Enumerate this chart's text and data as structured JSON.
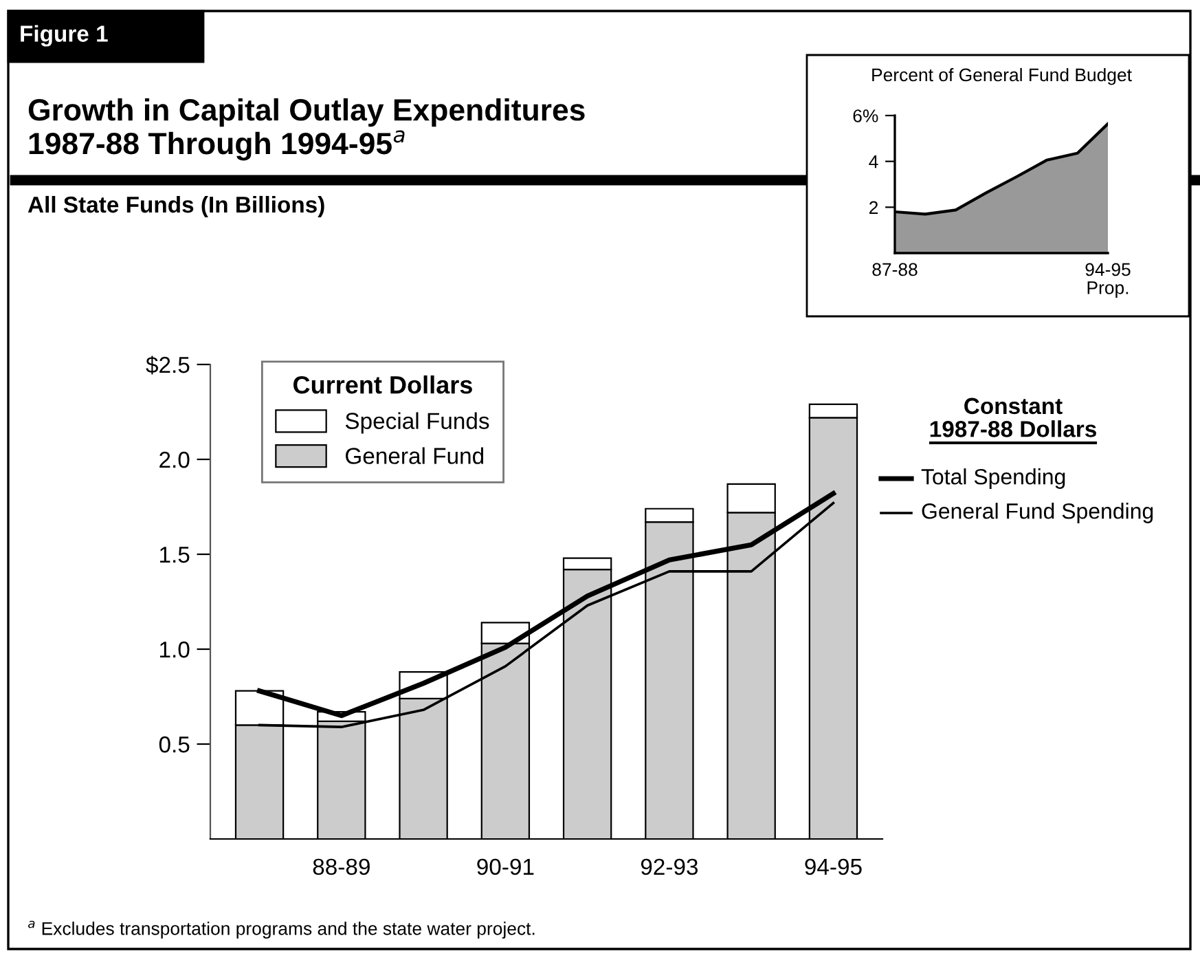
{
  "chart_data": [
    {
      "type": "bar",
      "title": "Growth in Capital Outlay Expenditures\n1987-88 Through 1994-95$^{a}$",
      "subtitle": "All State Funds (In Billions)",
      "annotations": [
        "Figure 1",
        "$^{a}$ Excludes transportation programs and the state water project.",
        "Constant\n1987-88 Dollars"
      ],
      "categories": [
        null,
        "88-89",
        null,
        "90-91",
        null,
        "92-93",
        null,
        "94-95"
      ],
      "stacked": true,
      "legend": "top right",
      "legend_title": "Current Dollars",
      "grid": false,
      "ylim": [
        0,
        2.5
      ],
      "yticks": [
        0.5,
        {
          "value": 1,
          "label": "1.0"
        },
        1.5,
        {
          "value": 2,
          "label": "2.0"
        },
        {
          "value": 2.5,
          "label": "$2.5"
        }
      ],
      "series": [
        {
          "name": "General Fund",
          "color": "#cccccc",
          "values": [
            0.6,
            0.62,
            0.74,
            1.03,
            1.42,
            1.67,
            1.72,
            2.22
          ]
        },
        {
          "name": "Special Funds",
          "color": "#ffffff",
          "values": [
            0.18,
            0.05,
            0.14,
            0.11,
            0.06,
            0.07,
            0.15,
            0.07
          ]
        },
        {
          "name": "Total Spending",
          "type": "line",
          "color": "#000000",
          "values": [
            0.78,
            0.65,
            0.82,
            1.01,
            1.28,
            1.47,
            1.55,
            1.82
          ]
        },
        {
          "name": "General Fund Spending",
          "type": "line",
          "color": "#000000",
          "values": [
            0.6,
            0.59,
            0.68,
            0.91,
            1.23,
            1.41,
            1.41,
            1.77
          ]
        }
      ]
    },
    {
      "type": "area",
      "title": "Percent of General Fund Budget",
      "categories": [
        "87-88",
        null,
        null,
        null,
        null,
        null,
        null,
        "94-95\nProp."
      ],
      "ylim": [
        0,
        6
      ],
      "yticks": [
        2,
        4,
        {
          "value": 6,
          "label": "6%"
        }
      ],
      "grid": false,
      "series": [
        {
          "color": "#999999",
          "values": [
            1.8,
            1.7,
            1.88,
            2.63,
            3.33,
            4.06,
            4.36,
            5.64
          ]
        }
      ]
    }
  ]
}
